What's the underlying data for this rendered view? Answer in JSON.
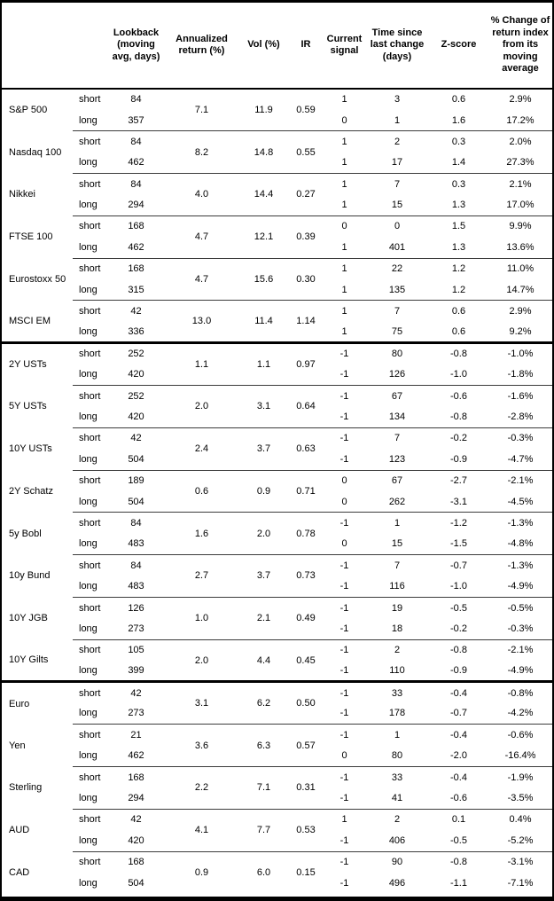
{
  "table": {
    "headers": [
      "",
      "",
      "Lookback (moving avg, days)",
      "Annualized return (%)",
      "Vol (%)",
      "IR",
      "Current signal",
      "Time since last change (days)",
      "Z-score",
      "% Change of return index from its moving average"
    ],
    "groups": [
      {
        "asset": "S&P 500",
        "section_start": false,
        "annualized_return": "7.1",
        "vol": "11.9",
        "ir": "0.59",
        "rows": [
          {
            "horizon": "short",
            "lookback": "84",
            "signal": "1",
            "time_since_days": "3",
            "z_score": "0.6",
            "pct_change": "2.9%"
          },
          {
            "horizon": "long",
            "lookback": "357",
            "signal": "0",
            "time_since_days": "1",
            "z_score": "1.6",
            "pct_change": "17.2%"
          }
        ]
      },
      {
        "asset": "Nasdaq 100",
        "section_start": false,
        "annualized_return": "8.2",
        "vol": "14.8",
        "ir": "0.55",
        "rows": [
          {
            "horizon": "short",
            "lookback": "84",
            "signal": "1",
            "time_since_days": "2",
            "z_score": "0.3",
            "pct_change": "2.0%"
          },
          {
            "horizon": "long",
            "lookback": "462",
            "signal": "1",
            "time_since_days": "17",
            "z_score": "1.4",
            "pct_change": "27.3%"
          }
        ]
      },
      {
        "asset": "Nikkei",
        "section_start": false,
        "annualized_return": "4.0",
        "vol": "14.4",
        "ir": "0.27",
        "rows": [
          {
            "horizon": "short",
            "lookback": "84",
            "signal": "1",
            "time_since_days": "7",
            "z_score": "0.3",
            "pct_change": "2.1%"
          },
          {
            "horizon": "long",
            "lookback": "294",
            "signal": "1",
            "time_since_days": "15",
            "z_score": "1.3",
            "pct_change": "17.0%"
          }
        ]
      },
      {
        "asset": "FTSE 100",
        "section_start": false,
        "annualized_return": "4.7",
        "vol": "12.1",
        "ir": "0.39",
        "rows": [
          {
            "horizon": "short",
            "lookback": "168",
            "signal": "0",
            "time_since_days": "0",
            "z_score": "1.5",
            "pct_change": "9.9%"
          },
          {
            "horizon": "long",
            "lookback": "462",
            "signal": "1",
            "time_since_days": "401",
            "z_score": "1.3",
            "pct_change": "13.6%"
          }
        ]
      },
      {
        "asset": "Eurostoxx 50",
        "section_start": false,
        "annualized_return": "4.7",
        "vol": "15.6",
        "ir": "0.30",
        "rows": [
          {
            "horizon": "short",
            "lookback": "168",
            "signal": "1",
            "time_since_days": "22",
            "z_score": "1.2",
            "pct_change": "11.0%"
          },
          {
            "horizon": "long",
            "lookback": "315",
            "signal": "1",
            "time_since_days": "135",
            "z_score": "1.2",
            "pct_change": "14.7%"
          }
        ]
      },
      {
        "asset": "MSCI EM",
        "section_start": false,
        "annualized_return": "13.0",
        "vol": "11.4",
        "ir": "1.14",
        "rows": [
          {
            "horizon": "short",
            "lookback": "42",
            "signal": "1",
            "time_since_days": "7",
            "z_score": "0.6",
            "pct_change": "2.9%"
          },
          {
            "horizon": "long",
            "lookback": "336",
            "signal": "1",
            "time_since_days": "75",
            "z_score": "0.6",
            "pct_change": "9.2%"
          }
        ]
      },
      {
        "asset": "2Y USTs",
        "section_start": true,
        "annualized_return": "1.1",
        "vol": "1.1",
        "ir": "0.97",
        "rows": [
          {
            "horizon": "short",
            "lookback": "252",
            "signal": "-1",
            "time_since_days": "80",
            "z_score": "-0.8",
            "pct_change": "-1.0%"
          },
          {
            "horizon": "long",
            "lookback": "420",
            "signal": "-1",
            "time_since_days": "126",
            "z_score": "-1.0",
            "pct_change": "-1.8%"
          }
        ]
      },
      {
        "asset": "5Y USTs",
        "section_start": false,
        "annualized_return": "2.0",
        "vol": "3.1",
        "ir": "0.64",
        "rows": [
          {
            "horizon": "short",
            "lookback": "252",
            "signal": "-1",
            "time_since_days": "67",
            "z_score": "-0.6",
            "pct_change": "-1.6%"
          },
          {
            "horizon": "long",
            "lookback": "420",
            "signal": "-1",
            "time_since_days": "134",
            "z_score": "-0.8",
            "pct_change": "-2.8%"
          }
        ]
      },
      {
        "asset": "10Y USTs",
        "section_start": false,
        "annualized_return": "2.4",
        "vol": "3.7",
        "ir": "0.63",
        "rows": [
          {
            "horizon": "short",
            "lookback": "42",
            "signal": "-1",
            "time_since_days": "7",
            "z_score": "-0.2",
            "pct_change": "-0.3%"
          },
          {
            "horizon": "long",
            "lookback": "504",
            "signal": "-1",
            "time_since_days": "123",
            "z_score": "-0.9",
            "pct_change": "-4.7%"
          }
        ]
      },
      {
        "asset": "2Y Schatz",
        "section_start": false,
        "annualized_return": "0.6",
        "vol": "0.9",
        "ir": "0.71",
        "rows": [
          {
            "horizon": "short",
            "lookback": "189",
            "signal": "0",
            "time_since_days": "67",
            "z_score": "-2.7",
            "pct_change": "-2.1%"
          },
          {
            "horizon": "long",
            "lookback": "504",
            "signal": "0",
            "time_since_days": "262",
            "z_score": "-3.1",
            "pct_change": "-4.5%"
          }
        ]
      },
      {
        "asset": "5y Bobl",
        "section_start": false,
        "annualized_return": "1.6",
        "vol": "2.0",
        "ir": "0.78",
        "rows": [
          {
            "horizon": "short",
            "lookback": "84",
            "signal": "-1",
            "time_since_days": "1",
            "z_score": "-1.2",
            "pct_change": "-1.3%"
          },
          {
            "horizon": "long",
            "lookback": "483",
            "signal": "0",
            "time_since_days": "15",
            "z_score": "-1.5",
            "pct_change": "-4.8%"
          }
        ]
      },
      {
        "asset": "10y Bund",
        "section_start": false,
        "annualized_return": "2.7",
        "vol": "3.7",
        "ir": "0.73",
        "rows": [
          {
            "horizon": "short",
            "lookback": "84",
            "signal": "-1",
            "time_since_days": "7",
            "z_score": "-0.7",
            "pct_change": "-1.3%"
          },
          {
            "horizon": "long",
            "lookback": "483",
            "signal": "-1",
            "time_since_days": "116",
            "z_score": "-1.0",
            "pct_change": "-4.9%"
          }
        ]
      },
      {
        "asset": "10Y JGB",
        "section_start": false,
        "annualized_return": "1.0",
        "vol": "2.1",
        "ir": "0.49",
        "rows": [
          {
            "horizon": "short",
            "lookback": "126",
            "signal": "-1",
            "time_since_days": "19",
            "z_score": "-0.5",
            "pct_change": "-0.5%"
          },
          {
            "horizon": "long",
            "lookback": "273",
            "signal": "-1",
            "time_since_days": "18",
            "z_score": "-0.2",
            "pct_change": "-0.3%"
          }
        ]
      },
      {
        "asset": "10Y Gilts",
        "section_start": false,
        "annualized_return": "2.0",
        "vol": "4.4",
        "ir": "0.45",
        "rows": [
          {
            "horizon": "short",
            "lookback": "105",
            "signal": "-1",
            "time_since_days": "2",
            "z_score": "-0.8",
            "pct_change": "-2.1%"
          },
          {
            "horizon": "long",
            "lookback": "399",
            "signal": "-1",
            "time_since_days": "110",
            "z_score": "-0.9",
            "pct_change": "-4.9%"
          }
        ]
      },
      {
        "asset": "Euro",
        "section_start": true,
        "annualized_return": "3.1",
        "vol": "6.2",
        "ir": "0.50",
        "rows": [
          {
            "horizon": "short",
            "lookback": "42",
            "signal": "-1",
            "time_since_days": "33",
            "z_score": "-0.4",
            "pct_change": "-0.8%"
          },
          {
            "horizon": "long",
            "lookback": "273",
            "signal": "-1",
            "time_since_days": "178",
            "z_score": "-0.7",
            "pct_change": "-4.2%"
          }
        ]
      },
      {
        "asset": "Yen",
        "section_start": false,
        "annualized_return": "3.6",
        "vol": "6.3",
        "ir": "0.57",
        "rows": [
          {
            "horizon": "short",
            "lookback": "21",
            "signal": "-1",
            "time_since_days": "1",
            "z_score": "-0.4",
            "pct_change": "-0.6%"
          },
          {
            "horizon": "long",
            "lookback": "462",
            "signal": "0",
            "time_since_days": "80",
            "z_score": "-2.0",
            "pct_change": "-16.4%"
          }
        ]
      },
      {
        "asset": "Sterling",
        "section_start": false,
        "annualized_return": "2.2",
        "vol": "7.1",
        "ir": "0.31",
        "rows": [
          {
            "horizon": "short",
            "lookback": "168",
            "signal": "-1",
            "time_since_days": "33",
            "z_score": "-0.4",
            "pct_change": "-1.9%"
          },
          {
            "horizon": "long",
            "lookback": "294",
            "signal": "-1",
            "time_since_days": "41",
            "z_score": "-0.6",
            "pct_change": "-3.5%"
          }
        ]
      },
      {
        "asset": "AUD",
        "section_start": false,
        "annualized_return": "4.1",
        "vol": "7.7",
        "ir": "0.53",
        "rows": [
          {
            "horizon": "short",
            "lookback": "42",
            "signal": "1",
            "time_since_days": "2",
            "z_score": "0.1",
            "pct_change": "0.4%"
          },
          {
            "horizon": "long",
            "lookback": "420",
            "signal": "-1",
            "time_since_days": "406",
            "z_score": "-0.5",
            "pct_change": "-5.2%"
          }
        ]
      },
      {
        "asset": "CAD",
        "section_start": false,
        "annualized_return": "0.9",
        "vol": "6.0",
        "ir": "0.15",
        "rows": [
          {
            "horizon": "short",
            "lookback": "168",
            "signal": "-1",
            "time_since_days": "90",
            "z_score": "-0.8",
            "pct_change": "-3.1%"
          },
          {
            "horizon": "long",
            "lookback": "504",
            "signal": "-1",
            "time_since_days": "496",
            "z_score": "-1.1",
            "pct_change": "-7.1%"
          }
        ]
      }
    ]
  }
}
